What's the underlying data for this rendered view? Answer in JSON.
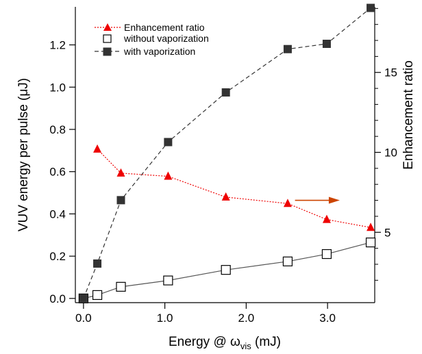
{
  "chart_data": {
    "type": "line",
    "x": {
      "label_main": "Energy @ ω",
      "label_sub": "vis",
      "label_unit": " (mJ)",
      "range": [
        -0.1,
        3.58
      ],
      "ticks": [
        0.0,
        1.0,
        2.0,
        3.0
      ],
      "tick_labels": [
        "0.0",
        "1.0",
        "2.0",
        "3.0"
      ]
    },
    "y_left": {
      "label": "VUV energy per pulse (μJ)",
      "range": [
        -0.02,
        1.38
      ],
      "ticks": [
        0.0,
        0.2,
        0.4,
        0.6,
        0.8,
        1.0,
        1.2
      ],
      "tick_labels": [
        "0.0",
        "0.2",
        "0.4",
        "0.6",
        "0.8",
        "1.0",
        "1.2"
      ]
    },
    "y_right": {
      "label": "Enhancement ratio",
      "range": [
        0.6,
        19.1
      ],
      "ticks": [
        5,
        10,
        15
      ],
      "tick_labels": [
        "5",
        "10",
        "15"
      ]
    },
    "series": [
      {
        "name": "Enhancement ratio",
        "axis": "right",
        "marker": "triangle",
        "line": "dotted",
        "color": "#ee0000",
        "x": [
          0.17,
          0.46,
          1.04,
          1.75,
          2.51,
          2.99,
          3.53
        ],
        "y": [
          10.2,
          8.7,
          8.5,
          7.2,
          6.8,
          5.8,
          5.3
        ]
      },
      {
        "name": "without vaporization",
        "axis": "left",
        "marker": "open-square",
        "line": "solid",
        "color": "#555555",
        "x": [
          0.0,
          0.17,
          0.46,
          1.04,
          1.75,
          2.51,
          2.99,
          3.53
        ],
        "y": [
          0.0,
          0.016,
          0.055,
          0.085,
          0.135,
          0.175,
          0.21,
          0.265
        ]
      },
      {
        "name": "with vaporization",
        "axis": "left",
        "marker": "filled-square",
        "line": "dashed",
        "color": "#333333",
        "x": [
          0.0,
          0.17,
          0.46,
          1.04,
          1.75,
          2.51,
          2.99,
          3.53
        ],
        "y": [
          0.0,
          0.165,
          0.465,
          0.74,
          0.975,
          1.18,
          1.205,
          1.375
        ]
      }
    ],
    "annotation": {
      "type": "arrow",
      "direction": "right",
      "color": "#cc4400",
      "from": [
        2.6,
        7.0
      ],
      "to": [
        3.15,
        7.0
      ]
    },
    "legend_placement": "top-left",
    "grid": false
  }
}
